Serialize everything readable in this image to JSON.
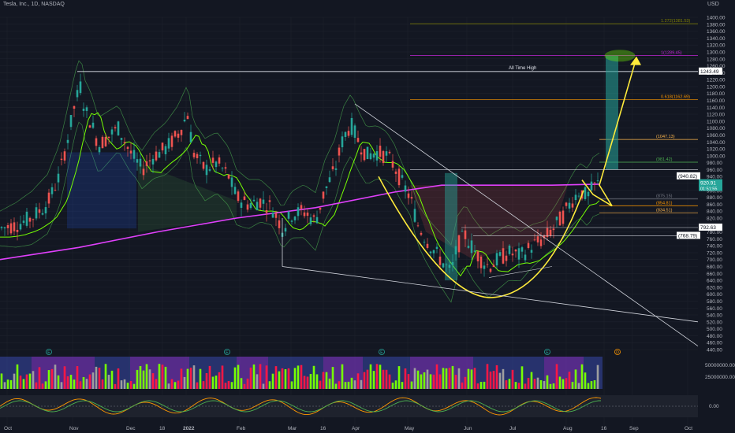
{
  "header": {
    "title": "Tesla, Inc., 1D, NASDAQ",
    "currency": "USD"
  },
  "colors": {
    "background": "#131722",
    "up": "#26a69a",
    "down": "#ef5350",
    "ma_long": "#e040fb",
    "ma_short": "#ffeb3b",
    "bands": "#4caf50",
    "pattern": "#ffeb3b",
    "target_box": "#2196f3",
    "fib_line": "#9c27b0"
  },
  "chart_data": {
    "type": "candlestick",
    "symbol": "Tesla, Inc.",
    "interval": "1D",
    "exchange": "NASDAQ",
    "y_axis": {
      "ticks": [
        1400,
        1380,
        1360,
        1340,
        1320,
        1300,
        1280,
        1260,
        1240,
        1220,
        1200,
        1180,
        1160,
        1140,
        1120,
        1100,
        1080,
        1060,
        1040,
        1020,
        1000,
        980,
        960,
        940,
        920,
        900,
        880,
        860,
        840,
        820,
        800,
        780,
        760,
        740,
        720,
        700,
        680,
        660,
        640,
        620,
        600,
        580,
        560,
        540,
        520,
        500,
        480,
        460,
        440
      ],
      "tick_labels": [
        "1400.00",
        "1380.00",
        "1360.00",
        "1340.00",
        "1320.00",
        "1300.00",
        "1280.00",
        "1260.00",
        "1240.00",
        "1220.00",
        "1200.00",
        "1180.00",
        "1160.00",
        "1140.00",
        "1120.00",
        "1100.00",
        "1080.00",
        "1060.00",
        "1040.00",
        "1020.00",
        "1000.00",
        "980.00",
        "960.00",
        "940.00",
        "920.00",
        "900.00",
        "880.00",
        "860.00",
        "840.00",
        "820.00",
        "800.00",
        "780.00",
        "760.00",
        "740.00",
        "720.00",
        "700.00",
        "680.00",
        "660.00",
        "640.00",
        "620.00",
        "600.00",
        "580.00",
        "560.00",
        "540.00",
        "520.00",
        "500.00",
        "480.00",
        "460.00",
        "440.00"
      ],
      "range": [
        430,
        1410
      ]
    },
    "x_axis": {
      "labels": [
        "Oct",
        "Nov",
        "Dec",
        "18",
        "2022",
        "Feb",
        "Mar",
        "16",
        "Apr",
        "May",
        "Jun",
        "Jul",
        "Aug",
        "16",
        "Sep",
        "Oct"
      ]
    },
    "price_labels": [
      {
        "value": 1243.49,
        "text": "1243.49"
      },
      {
        "value": 920.91,
        "text": "920.91",
        "sub": "01:51:55"
      },
      {
        "value": 792.63,
        "text": "792.63"
      },
      {
        "value": 768.79,
        "text": "(768.79)"
      },
      {
        "value": 940.82,
        "text": "(940.82)"
      }
    ],
    "annotations": {
      "all_time_high": "All Time High",
      "fib_levels": [
        {
          "value": 1381.53,
          "text": "1.272(1381.53)"
        },
        {
          "value": 1289.45,
          "text": "1(1289.45)"
        },
        {
          "value": 1162.69,
          "text": "0.618(1162.69)"
        },
        {
          "value": 1047.13,
          "text": "(1047.13)"
        },
        {
          "value": 981.42,
          "text": "(981.42)"
        },
        {
          "value": 875.15,
          "text": "(875.15)"
        },
        {
          "value": 854.81,
          "text": "(854.81)"
        },
        {
          "value": 834.51,
          "text": "(834.51)"
        }
      ]
    },
    "volume_axis": [
      "50000000.00",
      "25000000.00"
    ],
    "oscillator_axis": [
      "0.00"
    ],
    "event_markers": [
      "E",
      "E",
      "E",
      "E",
      "D"
    ]
  }
}
